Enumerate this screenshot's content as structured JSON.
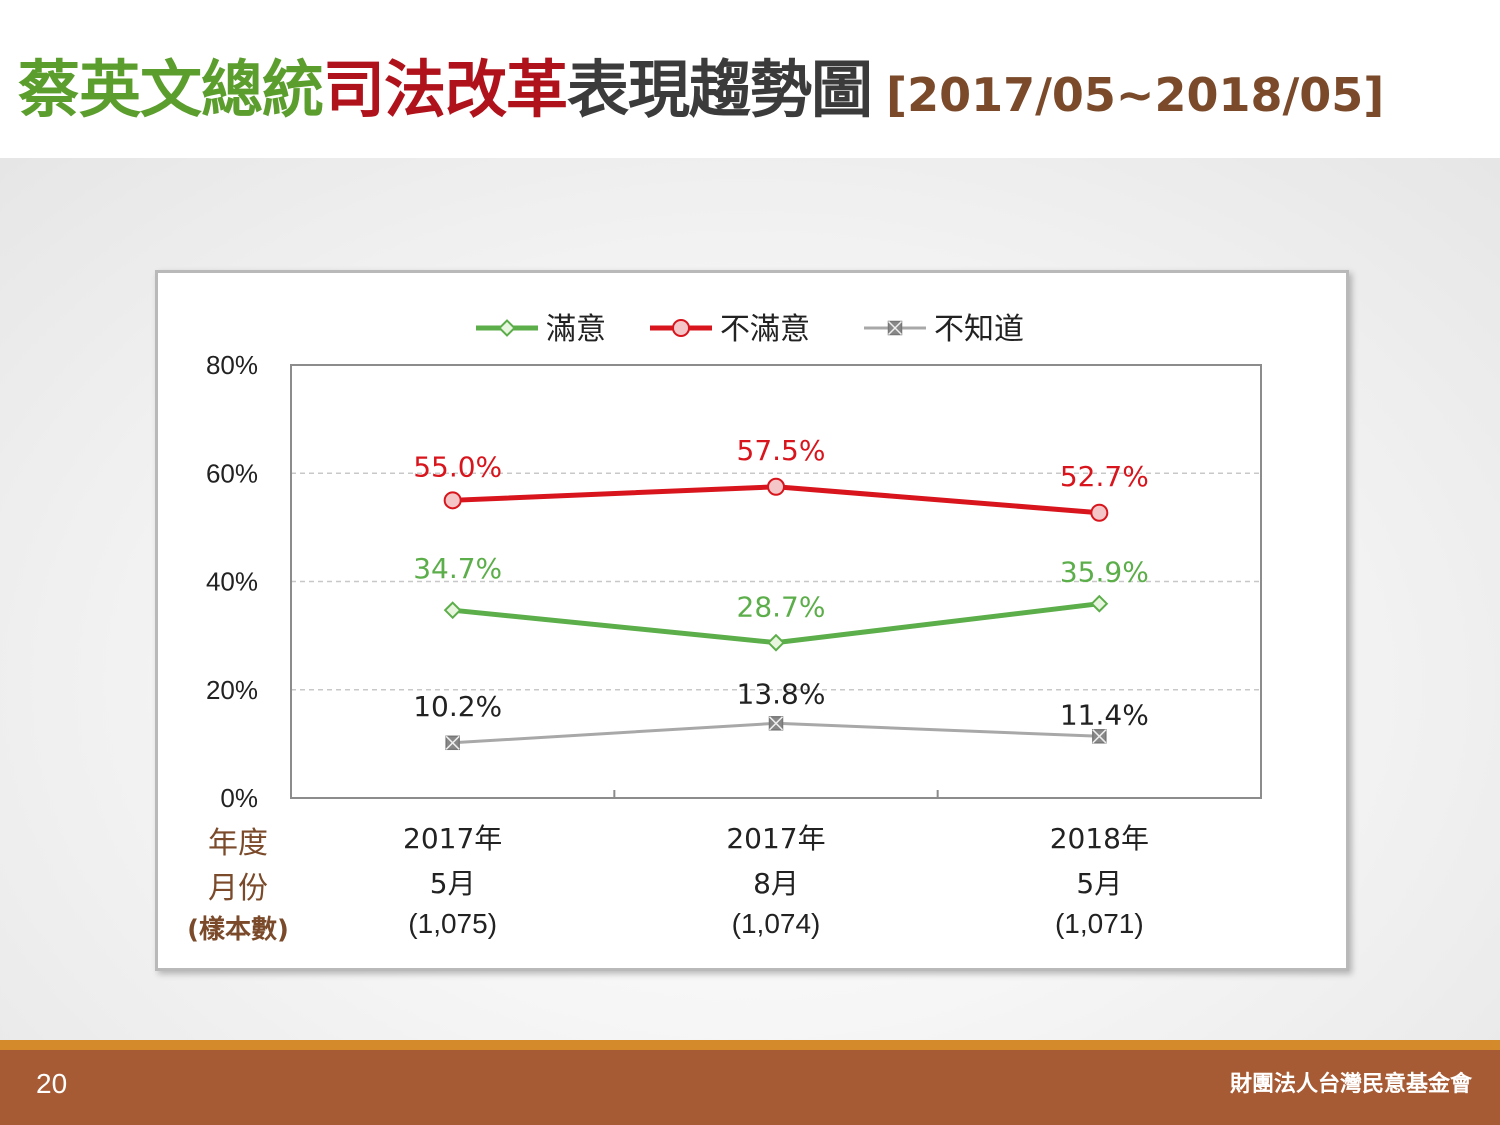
{
  "title": {
    "part1": "蔡英文總統",
    "part2": "司法改革",
    "part3": "表現趨勢圖",
    "range": "[2017/05~2018/05]"
  },
  "footer": {
    "page_number": "20",
    "organization": "財團法人台灣民意基金會"
  },
  "colors": {
    "satisfied": "#5cae4a",
    "dissatisfied": "#d8151c",
    "unknown": "#a8a8a8",
    "axis_caption": "#7a4a2a"
  },
  "chart_data": {
    "type": "line",
    "categories": [
      "2017年5月",
      "2017年8月",
      "2018年5月"
    ],
    "x_tick_labels": [
      {
        "year": "2017年",
        "month": "5月",
        "sample": "(1,075)"
      },
      {
        "year": "2017年",
        "month": "8月",
        "sample": "(1,074)"
      },
      {
        "year": "2018年",
        "month": "5月",
        "sample": "(1,071)"
      }
    ],
    "x_axis_caption": [
      "年度",
      "月份",
      "(樣本數)"
    ],
    "y_ticks": [
      "0%",
      "20%",
      "40%",
      "60%",
      "80%"
    ],
    "ylim": [
      0,
      80
    ],
    "grid": "horizontal dashed",
    "legend_position": "top",
    "series": [
      {
        "name": "滿意",
        "values": [
          34.7,
          28.7,
          35.9
        ],
        "labels": [
          "34.7%",
          "28.7%",
          "35.9%"
        ],
        "marker": "diamond"
      },
      {
        "name": "不滿意",
        "values": [
          55.0,
          57.5,
          52.7
        ],
        "labels": [
          "55.0%",
          "57.5%",
          "52.7%"
        ],
        "marker": "circle"
      },
      {
        "name": "不知道",
        "values": [
          10.2,
          13.8,
          11.4
        ],
        "labels": [
          "10.2%",
          "13.8%",
          "11.4%"
        ],
        "marker": "x-square"
      }
    ]
  }
}
